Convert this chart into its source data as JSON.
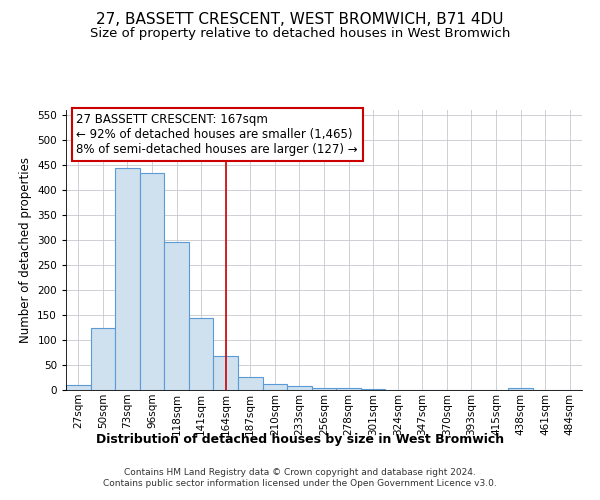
{
  "title": "27, BASSETT CRESCENT, WEST BROMWICH, B71 4DU",
  "subtitle": "Size of property relative to detached houses in West Bromwich",
  "xlabel": "Distribution of detached houses by size in West Bromwich",
  "ylabel": "Number of detached properties",
  "footer_line1": "Contains HM Land Registry data © Crown copyright and database right 2024.",
  "footer_line2": "Contains public sector information licensed under the Open Government Licence v3.0.",
  "bin_labels": [
    "27sqm",
    "50sqm",
    "73sqm",
    "96sqm",
    "118sqm",
    "141sqm",
    "164sqm",
    "187sqm",
    "210sqm",
    "233sqm",
    "256sqm",
    "278sqm",
    "301sqm",
    "324sqm",
    "347sqm",
    "370sqm",
    "393sqm",
    "415sqm",
    "438sqm",
    "461sqm",
    "484sqm"
  ],
  "bar_values": [
    10,
    125,
    445,
    435,
    297,
    145,
    68,
    27,
    13,
    8,
    5,
    5,
    2,
    1,
    0,
    0,
    1,
    0,
    5,
    0,
    0
  ],
  "bar_color": "#cfe0ef",
  "bar_edge_color": "#5b9bd5",
  "red_line_index": 6,
  "red_line_color": "#cc0000",
  "annotation_line1": "27 BASSETT CRESCENT: 167sqm",
  "annotation_line2": "← 92% of detached houses are smaller (1,465)",
  "annotation_line3": "8% of semi-detached houses are larger (127) →",
  "annotation_box_color": "#ffffff",
  "annotation_box_edge_color": "#cc0000",
  "ylim": [
    0,
    560
  ],
  "yticks": [
    0,
    50,
    100,
    150,
    200,
    250,
    300,
    350,
    400,
    450,
    500,
    550
  ],
  "title_fontsize": 11,
  "subtitle_fontsize": 9.5,
  "xlabel_fontsize": 9,
  "ylabel_fontsize": 8.5,
  "tick_fontsize": 7.5,
  "annotation_fontsize": 8.5,
  "footer_fontsize": 6.5,
  "grid_color": "#c8c8d0",
  "background_color": "#ffffff"
}
